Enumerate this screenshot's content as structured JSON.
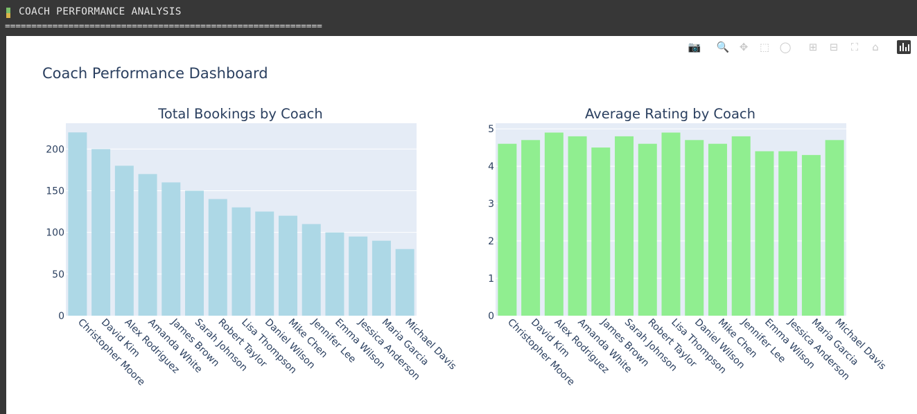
{
  "terminal": {
    "title": "COACH PERFORMANCE ANALYSIS",
    "rule": "============================================================"
  },
  "dashboard": {
    "title": "Coach Performance Dashboard"
  },
  "modebar": {
    "icons": [
      "camera-icon",
      "zoom-icon",
      "pan-icon",
      "box-select-icon",
      "lasso-select-icon",
      "zoom-in-icon",
      "zoom-out-icon",
      "autoscale-icon",
      "reset-axes-icon",
      "plotly-logo-icon"
    ]
  },
  "colors": {
    "bookings_bar": "#add8e6",
    "rating_bar": "#90ee90",
    "plot_bg": "#e5ecf6",
    "text": "#2a3f5f"
  },
  "chart_data": [
    {
      "type": "bar",
      "title": "Total Bookings by Coach",
      "xlabel": "",
      "ylabel": "",
      "categories": [
        "Christopher Moore",
        "David Kim",
        "Alex Rodriguez",
        "Amanda White",
        "James Brown",
        "Sarah Johnson",
        "Robert Taylor",
        "Lisa Thompson",
        "Daniel Wilson",
        "Mike Chen",
        "Jennifer Lee",
        "Emma Wilson",
        "Jessica Anderson",
        "Maria Garcia",
        "Michael Davis"
      ],
      "values": [
        220,
        200,
        180,
        170,
        160,
        150,
        140,
        130,
        125,
        120,
        110,
        100,
        95,
        90,
        80
      ],
      "ylim": [
        0,
        231
      ],
      "yticks": [
        0,
        50,
        100,
        150,
        200
      ],
      "grid": true
    },
    {
      "type": "bar",
      "title": "Average Rating by Coach",
      "xlabel": "",
      "ylabel": "",
      "categories": [
        "Christopher Moore",
        "David Kim",
        "Alex Rodriguez",
        "Amanda White",
        "James Brown",
        "Sarah Johnson",
        "Robert Taylor",
        "Lisa Thompson",
        "Daniel Wilson",
        "Mike Chen",
        "Jennifer Lee",
        "Emma Wilson",
        "Jessica Anderson",
        "Maria Garcia",
        "Michael Davis"
      ],
      "values": [
        4.6,
        4.7,
        4.9,
        4.8,
        4.5,
        4.8,
        4.6,
        4.9,
        4.7,
        4.6,
        4.8,
        4.4,
        4.4,
        4.3,
        4.7
      ],
      "ylim": [
        0,
        5.15
      ],
      "yticks": [
        0,
        1,
        2,
        3,
        4,
        5
      ],
      "grid": true
    }
  ]
}
